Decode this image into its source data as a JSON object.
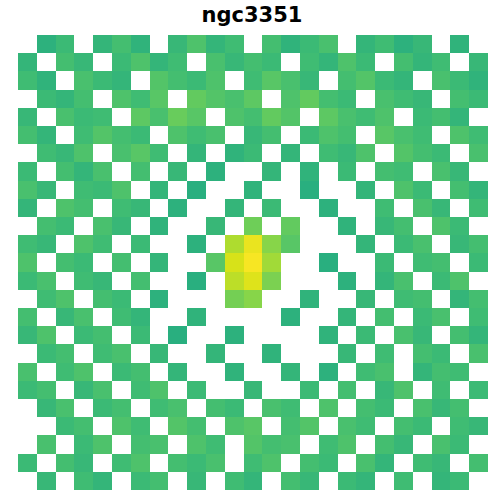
{
  "chart_data": {
    "type": "heatmap",
    "title": "ngc3351",
    "color": "viridis",
    "tick_labels": false,
    "grid": false,
    "xlim": [
      -0.5,
      24.5
    ],
    "ylim": [
      24.5,
      -0.5
    ],
    "zlim": [
      0,
      100
    ],
    "cells": [
      [
        null,
        64,
        68,
        null,
        66,
        70,
        65,
        null,
        67,
        72,
        66,
        69,
        null,
        70,
        65,
        68,
        71,
        null,
        66,
        69,
        64,
        67,
        null,
        65,
        null
      ],
      [
        66,
        null,
        70,
        67,
        null,
        68,
        72,
        66,
        69,
        null,
        71,
        67,
        70,
        68,
        null,
        69,
        66,
        72,
        68,
        null,
        70,
        66,
        69,
        null,
        67
      ],
      [
        69,
        65,
        null,
        71,
        68,
        66,
        null,
        73,
        70,
        68,
        72,
        null,
        69,
        74,
        71,
        67,
        null,
        70,
        73,
        68,
        66,
        null,
        71,
        68,
        65
      ],
      [
        null,
        68,
        66,
        70,
        null,
        72,
        69,
        74,
        null,
        76,
        73,
        71,
        75,
        null,
        72,
        76,
        70,
        68,
        null,
        71,
        69,
        67,
        null,
        70,
        68
      ],
      [
        67,
        null,
        71,
        68,
        69,
        null,
        75,
        71,
        77,
        74,
        null,
        72,
        70,
        76,
        73,
        null,
        75,
        71,
        69,
        72,
        null,
        68,
        70,
        66,
        null
      ],
      [
        70,
        66,
        null,
        69,
        73,
        70,
        68,
        null,
        72,
        69,
        71,
        null,
        67,
        70,
        null,
        68,
        72,
        70,
        null,
        74,
        71,
        69,
        null,
        72,
        69
      ],
      [
        null,
        69,
        67,
        72,
        null,
        71,
        74,
        69,
        null,
        66,
        null,
        65,
        68,
        null,
        66,
        null,
        69,
        67,
        72,
        null,
        73,
        70,
        68,
        null,
        71
      ],
      [
        68,
        null,
        70,
        66,
        71,
        null,
        70,
        null,
        67,
        null,
        64,
        null,
        null,
        66,
        null,
        65,
        null,
        68,
        null,
        70,
        69,
        null,
        71,
        67,
        null
      ],
      [
        71,
        67,
        null,
        69,
        68,
        72,
        null,
        66,
        null,
        63,
        null,
        null,
        65,
        null,
        null,
        63,
        null,
        null,
        66,
        null,
        72,
        68,
        null,
        70,
        66
      ],
      [
        66,
        null,
        72,
        70,
        null,
        69,
        67,
        null,
        64,
        null,
        null,
        66,
        null,
        68,
        null,
        null,
        64,
        null,
        null,
        69,
        null,
        71,
        67,
        null,
        69
      ],
      [
        null,
        70,
        68,
        null,
        71,
        67,
        null,
        65,
        null,
        null,
        67,
        null,
        78,
        null,
        76,
        null,
        null,
        65,
        null,
        67,
        70,
        null,
        72,
        68,
        null
      ],
      [
        69,
        67,
        null,
        72,
        69,
        null,
        68,
        null,
        null,
        64,
        null,
        88,
        97,
        82,
        74,
        null,
        null,
        null,
        66,
        null,
        68,
        71,
        null,
        67,
        70
      ],
      [
        72,
        null,
        70,
        68,
        null,
        70,
        null,
        66,
        null,
        null,
        74,
        94,
        99,
        86,
        null,
        null,
        63,
        null,
        null,
        68,
        null,
        69,
        70,
        null,
        68
      ],
      [
        68,
        71,
        null,
        69,
        67,
        null,
        70,
        null,
        null,
        63,
        null,
        90,
        95,
        80,
        null,
        null,
        null,
        64,
        null,
        66,
        71,
        null,
        68,
        72,
        null
      ],
      [
        null,
        69,
        72,
        null,
        70,
        68,
        null,
        64,
        null,
        null,
        null,
        79,
        82,
        null,
        null,
        65,
        null,
        null,
        67,
        null,
        69,
        70,
        null,
        66,
        70
      ],
      [
        70,
        null,
        67,
        71,
        null,
        69,
        66,
        null,
        null,
        65,
        null,
        null,
        null,
        null,
        64,
        null,
        null,
        66,
        null,
        70,
        null,
        68,
        71,
        null,
        69
      ],
      [
        67,
        72,
        null,
        68,
        70,
        null,
        68,
        null,
        63,
        null,
        null,
        64,
        null,
        null,
        null,
        null,
        65,
        null,
        68,
        null,
        71,
        67,
        null,
        70,
        66
      ],
      [
        null,
        68,
        70,
        null,
        69,
        71,
        null,
        67,
        null,
        null,
        66,
        null,
        null,
        65,
        null,
        null,
        null,
        67,
        null,
        69,
        null,
        70,
        68,
        null,
        71
      ],
      [
        71,
        null,
        69,
        72,
        null,
        68,
        70,
        null,
        66,
        null,
        null,
        65,
        null,
        null,
        66,
        null,
        64,
        null,
        69,
        71,
        null,
        66,
        70,
        69,
        null
      ],
      [
        68,
        70,
        null,
        67,
        71,
        null,
        69,
        72,
        null,
        68,
        null,
        null,
        67,
        null,
        null,
        68,
        null,
        70,
        null,
        67,
        72,
        null,
        69,
        null,
        68
      ],
      [
        null,
        67,
        71,
        null,
        68,
        70,
        null,
        69,
        71,
        null,
        70,
        68,
        null,
        71,
        69,
        null,
        72,
        null,
        70,
        68,
        null,
        71,
        67,
        70,
        null
      ],
      [
        null,
        null,
        68,
        70,
        null,
        72,
        69,
        null,
        73,
        70,
        null,
        72,
        74,
        null,
        70,
        73,
        null,
        71,
        69,
        null,
        70,
        68,
        null,
        69,
        67
      ],
      [
        null,
        71,
        null,
        68,
        72,
        null,
        70,
        71,
        null,
        72,
        69,
        null,
        73,
        70,
        71,
        null,
        69,
        72,
        null,
        70,
        67,
        null,
        71,
        68,
        null
      ],
      [
        68,
        null,
        70,
        67,
        null,
        69,
        72,
        null,
        70,
        68,
        71,
        null,
        69,
        72,
        null,
        70,
        68,
        null,
        71,
        66,
        null,
        69,
        67,
        null,
        70
      ],
      [
        null,
        67,
        null,
        69,
        66,
        null,
        68,
        70,
        null,
        67,
        null,
        69,
        66,
        null,
        70,
        67,
        null,
        68,
        66,
        null,
        69,
        null,
        66,
        68,
        null
      ]
    ]
  }
}
